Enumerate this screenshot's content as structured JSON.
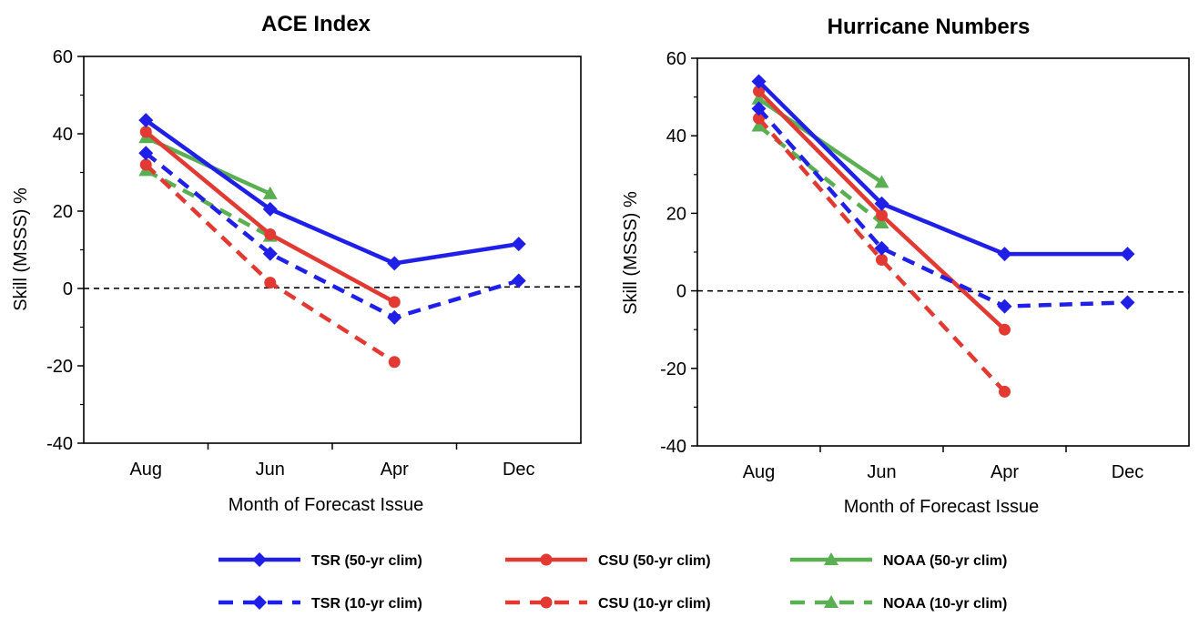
{
  "chart_data": [
    {
      "type": "line",
      "title": "ACE Index",
      "xlabel": "Month of Forecast Issue",
      "ylabel": "Skill (MSSS) %",
      "categories": [
        "Aug",
        "Jun",
        "Apr",
        "Dec"
      ],
      "ylim": [
        -40,
        60
      ],
      "yticks": [
        "60",
        "40",
        "20",
        "0",
        "-20",
        "-40"
      ],
      "reference_line": 0,
      "series": [
        {
          "name": "TSR (50-yr clim)",
          "values": [
            43.5,
            20.5,
            6.5,
            11.5
          ]
        },
        {
          "name": "CSU (50-yr clim)",
          "values": [
            40.5,
            14,
            -3.5,
            null
          ]
        },
        {
          "name": "NOAA (50-yr clim)",
          "values": [
            39,
            24.5,
            null,
            null
          ]
        },
        {
          "name": "TSR (10-yr clim)",
          "values": [
            35,
            9,
            -7.5,
            2
          ]
        },
        {
          "name": "CSU (10-yr clim)",
          "values": [
            32,
            1.5,
            -19,
            null
          ]
        },
        {
          "name": "NOAA (10-yr clim)",
          "values": [
            30.5,
            13.5,
            null,
            null
          ]
        }
      ]
    },
    {
      "type": "line",
      "title": "Hurricane Numbers",
      "xlabel": "Month of Forecast Issue",
      "ylabel": "Skill (MSSS) %",
      "categories": [
        "Aug",
        "Jun",
        "Apr",
        "Dec"
      ],
      "ylim": [
        -40,
        60
      ],
      "yticks": [
        "60",
        "40",
        "20",
        "0",
        "-20",
        "-40"
      ],
      "reference_line": 0,
      "series": [
        {
          "name": "TSR (50-yr clim)",
          "values": [
            54,
            22.5,
            9.5,
            9.5
          ]
        },
        {
          "name": "CSU (50-yr clim)",
          "values": [
            51.5,
            19.5,
            -10,
            null
          ]
        },
        {
          "name": "NOAA (50-yr clim)",
          "values": [
            49.5,
            28,
            null,
            null
          ]
        },
        {
          "name": "TSR (10-yr clim)",
          "values": [
            47,
            11,
            -4,
            -3
          ]
        },
        {
          "name": "CSU (10-yr clim)",
          "values": [
            44.5,
            8,
            -26,
            null
          ]
        },
        {
          "name": "NOAA (10-yr clim)",
          "values": [
            42.5,
            17.5,
            null,
            null
          ]
        }
      ]
    }
  ],
  "legend": [
    {
      "label": "TSR (50-yr clim)",
      "color": "#1f1fe8",
      "marker": "diamond",
      "dash": "solid"
    },
    {
      "label": "CSU (50-yr clim)",
      "color": "#e23a33",
      "marker": "circle",
      "dash": "solid"
    },
    {
      "label": "NOAA (50-yr clim)",
      "color": "#5aaf53",
      "marker": "triangle",
      "dash": "solid"
    },
    {
      "label": "TSR (10-yr clim)",
      "color": "#1f1fe8",
      "marker": "diamond",
      "dash": "dashed"
    },
    {
      "label": "CSU (10-yr clim)",
      "color": "#e23a33",
      "marker": "circle",
      "dash": "dashed"
    },
    {
      "label": "NOAA (10-yr clim)",
      "color": "#5aaf53",
      "marker": "triangle",
      "dash": "dashed"
    }
  ],
  "legend_placement": "bottom"
}
